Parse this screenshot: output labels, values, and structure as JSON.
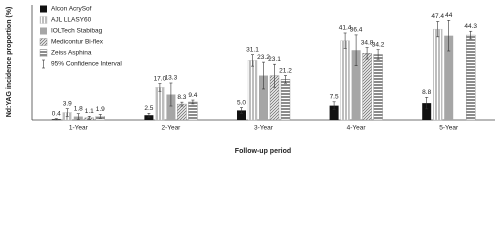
{
  "chart_data": {
    "type": "bar",
    "y_label": "Nd:YAG incidence proportion (%)",
    "x_label": "Follow-up period",
    "categories": [
      "1-Year",
      "2-Year",
      "3-Year",
      "4-Year",
      "5-Year"
    ],
    "ylim": [
      0,
      60
    ],
    "error_label": "95% Confidence Interval",
    "series": [
      {
        "name": "Alcon AcrySof",
        "color": "#111111",
        "pattern": "solid",
        "values": [
          0.4,
          2.5,
          5.0,
          7.5,
          8.8
        ],
        "value_labels": [
          "0.4",
          "2.5",
          "5.0",
          "7.5",
          "8.8"
        ],
        "errors": [
          0.3,
          1,
          1.5,
          2,
          3
        ]
      },
      {
        "name": "AJL LLASY60",
        "color": "#bdbdbd",
        "pattern": "vertical",
        "values": [
          3.9,
          17.0,
          31.1,
          41.4,
          47.4
        ],
        "value_labels": [
          "3.9",
          "17.0",
          "31.1",
          "41.4",
          "47.4"
        ],
        "errors": [
          2,
          2,
          3,
          4,
          4
        ]
      },
      {
        "name": "IOLTech Stabibag",
        "color": "#a6a6a6",
        "pattern": "solid",
        "values": [
          1.8,
          13.3,
          23.2,
          36.4,
          44
        ],
        "value_labels": [
          "1.8",
          "13.3",
          "23.2",
          "36.4",
          "44"
        ],
        "errors": [
          1.5,
          6,
          7,
          8,
          8
        ]
      },
      {
        "name": "Medicontur Bi-flex",
        "color": "#7f7f7f",
        "pattern": "diagonal",
        "values": [
          1.1,
          8.3,
          23.1,
          34.8,
          null
        ],
        "value_labels": [
          "1.1",
          "8.3",
          "23.1",
          "34.8",
          null
        ],
        "errors": [
          0.8,
          1,
          6,
          3,
          null
        ]
      },
      {
        "name": "Zeiss Asphina",
        "color": "#8c8c8c",
        "pattern": "horizontal",
        "values": [
          1.9,
          9.4,
          21.2,
          34.2,
          44.3
        ],
        "value_labels": [
          "1.9",
          "9.4",
          "21.2",
          "34.2",
          "44.3"
        ],
        "errors": [
          1,
          1,
          2,
          2.5,
          2
        ]
      }
    ]
  }
}
